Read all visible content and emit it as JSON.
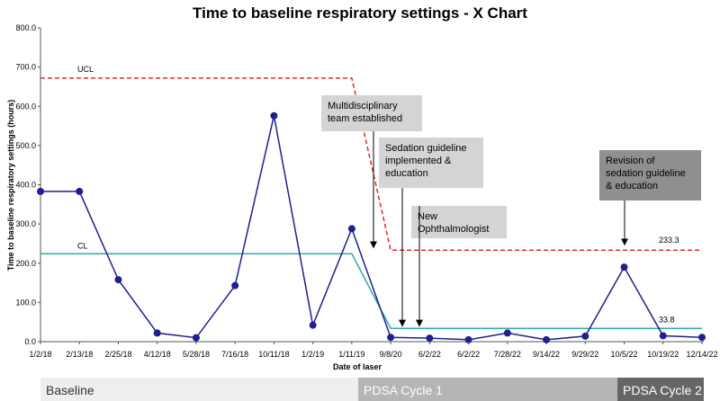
{
  "chart_data": {
    "type": "line",
    "title": "Time to baseline respiratory settings - X Chart",
    "xlabel": "Date of laser",
    "ylabel": "Time to baseline respiratory settings (hours)",
    "ylim": [
      0,
      800
    ],
    "yticks": [
      "0.0",
      "100.0",
      "200.0",
      "300.0",
      "400.0",
      "500.0",
      "600.0",
      "700.0",
      "800.0"
    ],
    "categories": [
      "1/2/18",
      "2/13/18",
      "2/25/18",
      "4/12/18",
      "5/28/18",
      "7/16/18",
      "10/11/18",
      "1/2/19",
      "1/11/19",
      "9/8/20",
      "6/2/22",
      "6/2/22",
      "7/28/22",
      "9/14/22",
      "9/29/22",
      "10/5/22",
      "10/19/22",
      "12/14/22"
    ],
    "series": [
      {
        "name": "",
        "color": "#1f1f8f",
        "values": [
          383,
          383,
          158,
          22,
          10,
          143,
          576,
          42,
          288,
          11,
          9,
          5,
          22,
          5,
          14,
          190,
          15,
          11
        ]
      }
    ],
    "ucl": {
      "label": "UCL",
      "color": "#e8262b",
      "phase1_value": 672,
      "phase2_value": 233.3,
      "value_label": "233.3"
    },
    "cl": {
      "label": "CL",
      "color": "#36aaa6",
      "phase1_value": 224,
      "phase2_value": 33.8,
      "value_label": "33.8"
    },
    "annotations": [
      {
        "lines": [
          "Multidisciplinary",
          "team established"
        ],
        "fill": "#d4d4d4",
        "arrow_value": 233
      },
      {
        "lines": [
          "Sedation guideline",
          "implemented &",
          "education"
        ],
        "fill": "#d4d4d4",
        "arrow_value": 33
      },
      {
        "lines": [
          "New",
          "Ophthalmologist"
        ],
        "fill": "#d4d4d4",
        "arrow_value": 33
      },
      {
        "lines": [
          "Revision of",
          "sedation guideline",
          "& education"
        ],
        "fill": "#8f8f8f",
        "arrow_value": 240
      }
    ],
    "phases": [
      {
        "label": "Baseline",
        "fill": "#eeeeee",
        "text_color": "#333333"
      },
      {
        "label": "PDSA Cycle 1",
        "fill": "#b5b5b5",
        "text_color": "#ffffff"
      },
      {
        "label": "PDSA Cycle 2",
        "fill": "#666666",
        "text_color": "#ffffff"
      }
    ],
    "grid": false,
    "legend": "none"
  }
}
